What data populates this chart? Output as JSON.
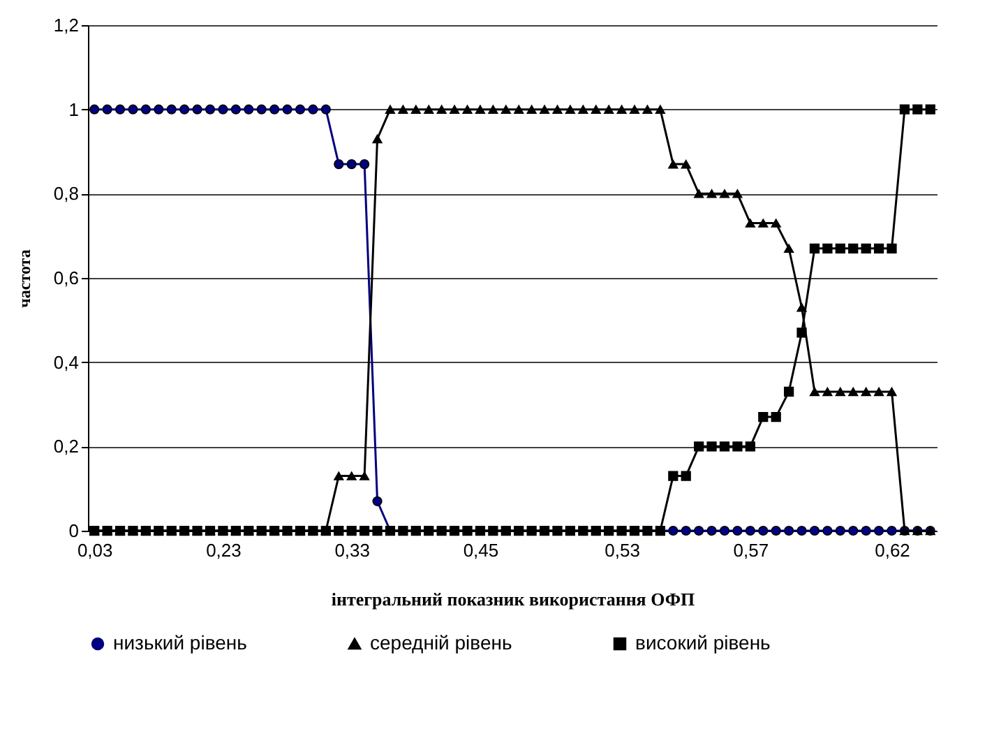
{
  "chart_data": {
    "type": "line",
    "xlabel": "інтегральний показник використання ОФП",
    "ylabel": "частота",
    "categories": [
      "0,03",
      null,
      null,
      null,
      null,
      null,
      null,
      null,
      null,
      null,
      "0,23",
      null,
      null,
      null,
      null,
      null,
      null,
      null,
      null,
      null,
      "0,33",
      null,
      null,
      null,
      null,
      null,
      null,
      null,
      null,
      null,
      "0,45",
      null,
      null,
      null,
      null,
      null,
      null,
      null,
      null,
      null,
      null,
      "0,53",
      null,
      null,
      null,
      null,
      null,
      null,
      null,
      null,
      null,
      "0,57",
      null,
      null,
      null,
      null,
      null,
      null,
      null,
      null,
      null,
      null,
      "0,62",
      null,
      null,
      null
    ],
    "series": [
      {
        "name": "низький рівень",
        "color": "#000080",
        "marker": "circle",
        "values": [
          1,
          1,
          1,
          1,
          1,
          1,
          1,
          1,
          1,
          1,
          1,
          1,
          1,
          1,
          1,
          1,
          1,
          1,
          1,
          0.87,
          0.87,
          0.87,
          0.07,
          0,
          0,
          0,
          0,
          0,
          0,
          0,
          0,
          0,
          0,
          0,
          0,
          0,
          0,
          0,
          0,
          0,
          0,
          0,
          0,
          0,
          0,
          0,
          0,
          0,
          0,
          0,
          0,
          0,
          0,
          0,
          0,
          0,
          0,
          0,
          0,
          0,
          0,
          0,
          0,
          0,
          0,
          0
        ]
      },
      {
        "name": "середній рівень",
        "color": "#000000",
        "marker": "triangle",
        "values": [
          0,
          0,
          0,
          0,
          0,
          0,
          0,
          0,
          0,
          0,
          0,
          0,
          0,
          0,
          0,
          0,
          0,
          0,
          0,
          0.13,
          0.13,
          0.13,
          0.93,
          1,
          1,
          1,
          1,
          1,
          1,
          1,
          1,
          1,
          1,
          1,
          1,
          1,
          1,
          1,
          1,
          1,
          1,
          1,
          1,
          1,
          1,
          0.87,
          0.87,
          0.8,
          0.8,
          0.8,
          0.8,
          0.73,
          0.73,
          0.73,
          0.67,
          0.53,
          0.33,
          0.33,
          0.33,
          0.33,
          0.33,
          0.33,
          0.33,
          0,
          0,
          0
        ]
      },
      {
        "name": "високий рівень",
        "color": "#000000",
        "marker": "square",
        "values": [
          0,
          0,
          0,
          0,
          0,
          0,
          0,
          0,
          0,
          0,
          0,
          0,
          0,
          0,
          0,
          0,
          0,
          0,
          0,
          0,
          0,
          0,
          0,
          0,
          0,
          0,
          0,
          0,
          0,
          0,
          0,
          0,
          0,
          0,
          0,
          0,
          0,
          0,
          0,
          0,
          0,
          0,
          0,
          0,
          0,
          0.13,
          0.13,
          0.2,
          0.2,
          0.2,
          0.2,
          0.2,
          0.27,
          0.27,
          0.33,
          0.47,
          0.67,
          0.67,
          0.67,
          0.67,
          0.67,
          0.67,
          0.67,
          1,
          1,
          1
        ]
      }
    ],
    "ylim": [
      0,
      1.2
    ],
    "yticks": [
      0,
      {
        "value": 0.2,
        "label": "0,2"
      },
      {
        "value": 0.4,
        "label": "0,4"
      },
      {
        "value": 0.6,
        "label": "0,6"
      },
      {
        "value": 0.8,
        "label": "0,8"
      },
      1,
      {
        "value": 1.2,
        "label": "1,2"
      }
    ],
    "grid": "y",
    "legend": "bottom"
  }
}
